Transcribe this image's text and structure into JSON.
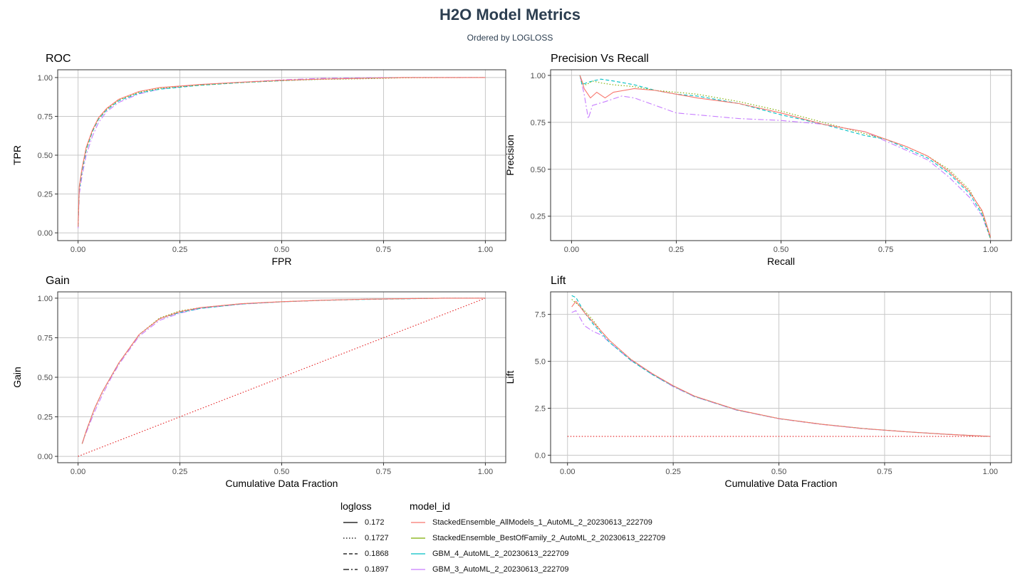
{
  "title": "H2O Model Metrics",
  "subtitle": "Ordered by LOGLOSS",
  "colors": {
    "grid": "#c8c8c8",
    "axis_text": "#4d4d4d",
    "title": "#2c3e50",
    "models": [
      "#F8766D",
      "#7CAE00",
      "#00BFC4",
      "#C77CFF"
    ],
    "baseline": "#E41A1C"
  },
  "legend": {
    "logloss_title": "logloss",
    "model_title": "model_id",
    "logloss": [
      {
        "label": "0.172",
        "dash": "solid"
      },
      {
        "label": "0.1727",
        "dash": "dotted"
      },
      {
        "label": "0.1868",
        "dash": "dashed"
      },
      {
        "label": "0.1897",
        "dash": "longdash"
      }
    ],
    "models": [
      {
        "label": "StackedEnsemble_AllModels_1_AutoML_2_20230613_222709",
        "color": "#F8766D"
      },
      {
        "label": "StackedEnsemble_BestOfFamily_2_AutoML_2_20230613_222709",
        "color": "#7CAE00"
      },
      {
        "label": "GBM_4_AutoML_2_20230613_222709",
        "color": "#00BFC4"
      },
      {
        "label": "GBM_3_AutoML_2_20230613_222709",
        "color": "#C77CFF"
      }
    ]
  },
  "chart_data": [
    {
      "id": "roc",
      "type": "line",
      "title": "ROC",
      "xlabel": "FPR",
      "ylabel": "TPR",
      "xlim": [
        -0.05,
        1.05
      ],
      "ylim": [
        -0.05,
        1.05
      ],
      "xticks": [
        "0.00",
        "0.25",
        "0.50",
        "0.75",
        "1.00"
      ],
      "yticks": [
        "0.00",
        "0.25",
        "0.50",
        "0.75",
        "1.00"
      ],
      "xtick_values": [
        0,
        0.25,
        0.5,
        0.75,
        1
      ],
      "ytick_values": [
        0,
        0.25,
        0.5,
        0.75,
        1
      ],
      "series": [
        {
          "model": "StackedEnsemble_AllModels_1_AutoML_2_20230613_222709",
          "logloss": "0.172",
          "x": [
            0,
            0.003,
            0.01,
            0.02,
            0.035,
            0.05,
            0.07,
            0.1,
            0.15,
            0.2,
            0.3,
            0.4,
            0.5,
            0.6,
            0.7,
            0.8,
            1.0
          ],
          "y": [
            0.04,
            0.3,
            0.42,
            0.55,
            0.66,
            0.74,
            0.8,
            0.86,
            0.91,
            0.935,
            0.955,
            0.97,
            0.982,
            0.99,
            0.995,
            1.0,
            1.0
          ]
        },
        {
          "model": "StackedEnsemble_BestOfFamily_2_AutoML_2_20230613_222709",
          "logloss": "0.1727",
          "x": [
            0,
            0.003,
            0.01,
            0.02,
            0.035,
            0.05,
            0.07,
            0.1,
            0.15,
            0.2,
            0.3,
            0.4,
            0.5,
            0.6,
            0.7,
            0.8,
            1.0
          ],
          "y": [
            0.04,
            0.29,
            0.41,
            0.54,
            0.655,
            0.735,
            0.795,
            0.855,
            0.905,
            0.93,
            0.952,
            0.968,
            0.98,
            0.988,
            0.992,
            0.998,
            1.0
          ]
        },
        {
          "model": "GBM_4_AutoML_2_20230613_222709",
          "logloss": "0.1868",
          "x": [
            0,
            0.003,
            0.01,
            0.02,
            0.035,
            0.05,
            0.07,
            0.1,
            0.15,
            0.2,
            0.3,
            0.4,
            0.5,
            0.6,
            0.7,
            0.8,
            1.0
          ],
          "y": [
            0.04,
            0.28,
            0.4,
            0.53,
            0.65,
            0.73,
            0.79,
            0.85,
            0.9,
            0.925,
            0.95,
            0.967,
            0.98,
            0.99,
            0.995,
            1.0,
            1.0
          ]
        },
        {
          "model": "GBM_3_AutoML_2_20230613_222709",
          "logloss": "0.1897",
          "x": [
            0,
            0.003,
            0.01,
            0.02,
            0.035,
            0.05,
            0.07,
            0.1,
            0.15,
            0.2,
            0.3,
            0.4,
            0.5,
            0.6,
            0.7,
            0.8,
            1.0
          ],
          "y": [
            0.03,
            0.25,
            0.37,
            0.5,
            0.62,
            0.71,
            0.78,
            0.84,
            0.895,
            0.925,
            0.955,
            0.97,
            0.985,
            0.995,
            0.998,
            1.0,
            1.0
          ]
        }
      ]
    },
    {
      "id": "pr",
      "type": "line",
      "title": "Precision Vs Recall",
      "xlabel": "Recall",
      "ylabel": "Precision",
      "xlim": [
        -0.05,
        1.05
      ],
      "ylim": [
        0.12,
        1.03
      ],
      "xticks": [
        "0.00",
        "0.25",
        "0.50",
        "0.75",
        "1.00"
      ],
      "yticks": [
        "0.25",
        "0.50",
        "0.75",
        "1.00"
      ],
      "xtick_values": [
        0,
        0.25,
        0.5,
        0.75,
        1
      ],
      "ytick_values": [
        0.25,
        0.5,
        0.75,
        1
      ],
      "series": [
        {
          "model": "StackedEnsemble_AllModels_1_AutoML_2_20230613_222709",
          "logloss": "0.172",
          "x": [
            0.02,
            0.025,
            0.03,
            0.045,
            0.06,
            0.08,
            0.1,
            0.15,
            0.2,
            0.25,
            0.3,
            0.4,
            0.5,
            0.6,
            0.7,
            0.75,
            0.8,
            0.85,
            0.9,
            0.95,
            0.98,
            1.0
          ],
          "y": [
            1.0,
            0.97,
            0.93,
            0.88,
            0.91,
            0.88,
            0.91,
            0.93,
            0.92,
            0.9,
            0.88,
            0.85,
            0.8,
            0.74,
            0.7,
            0.66,
            0.62,
            0.57,
            0.49,
            0.38,
            0.28,
            0.14
          ]
        },
        {
          "model": "StackedEnsemble_BestOfFamily_2_AutoML_2_20230613_222709",
          "logloss": "0.1727",
          "x": [
            0.02,
            0.025,
            0.035,
            0.05,
            0.07,
            0.1,
            0.15,
            0.2,
            0.25,
            0.3,
            0.4,
            0.5,
            0.6,
            0.7,
            0.75,
            0.8,
            0.85,
            0.9,
            0.95,
            0.98,
            1.0
          ],
          "y": [
            1.0,
            0.96,
            0.95,
            0.97,
            0.96,
            0.95,
            0.94,
            0.92,
            0.91,
            0.9,
            0.86,
            0.81,
            0.75,
            0.69,
            0.66,
            0.62,
            0.57,
            0.5,
            0.39,
            0.27,
            0.13
          ]
        },
        {
          "model": "GBM_4_AutoML_2_20230613_222709",
          "logloss": "0.1868",
          "x": [
            0.02,
            0.025,
            0.035,
            0.05,
            0.07,
            0.1,
            0.15,
            0.2,
            0.25,
            0.3,
            0.4,
            0.5,
            0.6,
            0.7,
            0.75,
            0.8,
            0.85,
            0.9,
            0.95,
            0.98,
            1.0
          ],
          "y": [
            1.0,
            0.95,
            0.96,
            0.97,
            0.98,
            0.97,
            0.95,
            0.92,
            0.9,
            0.89,
            0.85,
            0.79,
            0.74,
            0.68,
            0.66,
            0.61,
            0.56,
            0.48,
            0.37,
            0.26,
            0.13
          ]
        },
        {
          "model": "GBM_3_AutoML_2_20230613_222709",
          "logloss": "0.1897",
          "x": [
            0.02,
            0.03,
            0.04,
            0.05,
            0.08,
            0.12,
            0.15,
            0.2,
            0.25,
            0.3,
            0.4,
            0.5,
            0.6,
            0.7,
            0.75,
            0.8,
            0.85,
            0.9,
            0.95,
            0.98,
            1.0
          ],
          "y": [
            1.0,
            0.9,
            0.77,
            0.84,
            0.86,
            0.89,
            0.88,
            0.84,
            0.8,
            0.79,
            0.77,
            0.76,
            0.74,
            0.7,
            0.65,
            0.6,
            0.55,
            0.46,
            0.35,
            0.25,
            0.13
          ]
        }
      ]
    },
    {
      "id": "gain",
      "type": "line",
      "title": "Gain",
      "xlabel": "Cumulative Data Fraction",
      "ylabel": "Gain",
      "xlim": [
        -0.05,
        1.05
      ],
      "ylim": [
        -0.04,
        1.04
      ],
      "xticks": [
        "0.00",
        "0.25",
        "0.50",
        "0.75",
        "1.00"
      ],
      "yticks": [
        "0.00",
        "0.25",
        "0.50",
        "0.75",
        "1.00"
      ],
      "xtick_values": [
        0,
        0.25,
        0.5,
        0.75,
        1
      ],
      "ytick_values": [
        0,
        0.25,
        0.5,
        0.75,
        1
      ],
      "baseline": {
        "x": [
          0,
          1
        ],
        "y": [
          0,
          1
        ]
      },
      "series": [
        {
          "model": "StackedEnsemble_AllModels_1_AutoML_2_20230613_222709",
          "logloss": "0.172",
          "x": [
            0.01,
            0.02,
            0.04,
            0.06,
            0.08,
            0.1,
            0.125,
            0.15,
            0.2,
            0.25,
            0.3,
            0.4,
            0.5,
            0.6,
            0.7,
            0.8,
            0.9,
            1.0
          ],
          "y": [
            0.08,
            0.16,
            0.3,
            0.41,
            0.5,
            0.59,
            0.68,
            0.77,
            0.87,
            0.915,
            0.94,
            0.965,
            0.978,
            0.987,
            0.993,
            0.997,
            1.0,
            1.0
          ]
        },
        {
          "model": "StackedEnsemble_BestOfFamily_2_AutoML_2_20230613_222709",
          "logloss": "0.1727",
          "x": [
            0.01,
            0.02,
            0.04,
            0.06,
            0.08,
            0.1,
            0.125,
            0.15,
            0.2,
            0.25,
            0.3,
            0.4,
            0.5,
            0.6,
            0.7,
            0.8,
            0.9,
            1.0
          ],
          "y": [
            0.08,
            0.16,
            0.3,
            0.41,
            0.5,
            0.59,
            0.68,
            0.77,
            0.875,
            0.92,
            0.94,
            0.965,
            0.978,
            0.987,
            0.993,
            0.997,
            1.0,
            1.0
          ]
        },
        {
          "model": "GBM_4_AutoML_2_20230613_222709",
          "logloss": "0.1868",
          "x": [
            0.01,
            0.02,
            0.04,
            0.06,
            0.08,
            0.1,
            0.125,
            0.15,
            0.2,
            0.25,
            0.3,
            0.4,
            0.5,
            0.6,
            0.7,
            0.8,
            0.9,
            1.0
          ],
          "y": [
            0.08,
            0.16,
            0.3,
            0.41,
            0.5,
            0.59,
            0.68,
            0.77,
            0.87,
            0.91,
            0.935,
            0.963,
            0.977,
            0.986,
            0.992,
            0.996,
            1.0,
            1.0
          ]
        },
        {
          "model": "GBM_3_AutoML_2_20230613_222709",
          "logloss": "0.1897",
          "x": [
            0.01,
            0.02,
            0.04,
            0.06,
            0.08,
            0.1,
            0.125,
            0.15,
            0.2,
            0.25,
            0.3,
            0.4,
            0.5,
            0.6,
            0.7,
            0.8,
            0.9,
            1.0
          ],
          "y": [
            0.08,
            0.15,
            0.28,
            0.39,
            0.49,
            0.58,
            0.67,
            0.76,
            0.86,
            0.905,
            0.935,
            0.962,
            0.977,
            0.987,
            0.993,
            0.997,
            1.0,
            1.0
          ]
        }
      ]
    },
    {
      "id": "lift",
      "type": "line",
      "title": "Lift",
      "xlabel": "Cumulative Data Fraction",
      "ylabel": "Lift",
      "xlim": [
        -0.04,
        1.05
      ],
      "ylim": [
        -0.4,
        8.7
      ],
      "xticks": [
        "0.00",
        "0.25",
        "0.50",
        "0.75",
        "1.00"
      ],
      "yticks": [
        "0.0",
        "2.5",
        "5.0",
        "7.5"
      ],
      "xtick_values": [
        0,
        0.25,
        0.5,
        0.75,
        1
      ],
      "ytick_values": [
        0,
        2.5,
        5,
        7.5
      ],
      "baseline": {
        "x": [
          0,
          1
        ],
        "y": [
          1,
          1
        ]
      },
      "series": [
        {
          "model": "StackedEnsemble_AllModels_1_AutoML_2_20230613_222709",
          "logloss": "0.172",
          "x": [
            0.01,
            0.02,
            0.04,
            0.06,
            0.08,
            0.1,
            0.15,
            0.2,
            0.25,
            0.3,
            0.4,
            0.5,
            0.6,
            0.7,
            0.8,
            0.9,
            1.0
          ],
          "y": [
            7.9,
            8.2,
            7.6,
            7.1,
            6.6,
            6.1,
            5.1,
            4.35,
            3.7,
            3.15,
            2.42,
            1.95,
            1.65,
            1.42,
            1.25,
            1.11,
            1.0
          ]
        },
        {
          "model": "StackedEnsemble_BestOfFamily_2_AutoML_2_20230613_222709",
          "logloss": "0.1727",
          "x": [
            0.01,
            0.02,
            0.04,
            0.06,
            0.08,
            0.1,
            0.15,
            0.2,
            0.25,
            0.3,
            0.4,
            0.5,
            0.6,
            0.7,
            0.8,
            0.9,
            1.0
          ],
          "y": [
            8.3,
            8.1,
            7.7,
            7.2,
            6.6,
            6.1,
            5.1,
            4.35,
            3.7,
            3.15,
            2.42,
            1.95,
            1.65,
            1.42,
            1.25,
            1.11,
            1.0
          ]
        },
        {
          "model": "GBM_4_AutoML_2_20230613_222709",
          "logloss": "0.1868",
          "x": [
            0.01,
            0.02,
            0.04,
            0.06,
            0.08,
            0.1,
            0.15,
            0.2,
            0.25,
            0.3,
            0.4,
            0.5,
            0.6,
            0.7,
            0.8,
            0.9,
            1.0
          ],
          "y": [
            8.5,
            8.4,
            7.6,
            7.0,
            6.5,
            6.0,
            5.05,
            4.3,
            3.68,
            3.13,
            2.41,
            1.95,
            1.65,
            1.42,
            1.25,
            1.11,
            1.0
          ]
        },
        {
          "model": "GBM_3_AutoML_2_20230613_222709",
          "logloss": "0.1897",
          "x": [
            0.01,
            0.02,
            0.04,
            0.06,
            0.08,
            0.1,
            0.15,
            0.2,
            0.25,
            0.3,
            0.4,
            0.5,
            0.6,
            0.7,
            0.8,
            0.9,
            1.0
          ],
          "y": [
            7.6,
            7.7,
            6.9,
            6.6,
            6.4,
            6.0,
            5.05,
            4.3,
            3.65,
            3.12,
            2.4,
            1.94,
            1.64,
            1.41,
            1.25,
            1.11,
            1.0
          ]
        }
      ]
    }
  ]
}
